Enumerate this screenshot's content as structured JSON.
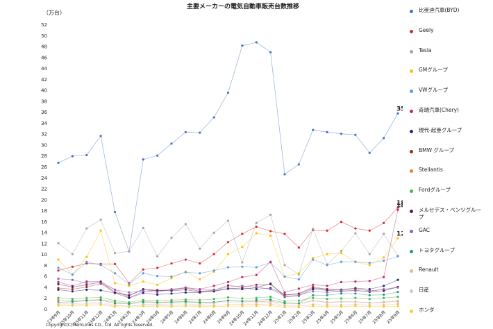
{
  "chart_data": {
    "type": "line",
    "title": "主要メーカーの電気自動車販売台数推移",
    "y_label": "（万台）",
    "note": "Copyright(C)MarkLines CO., Ltd. All rights reserved.",
    "categories": [
      "23年9月",
      "23年10月",
      "23年11月",
      "23年12月",
      "24年1月",
      "24年2月",
      "24年3月",
      "24年4月",
      "24年5月",
      "24年6月",
      "24年7月",
      "24年8月",
      "24年9月",
      "24年10月",
      "24年11月",
      "24年12月",
      "25年1月",
      "25年2月",
      "25年3月",
      "25年4月",
      "25年5月",
      "25年6月",
      "25年7月",
      "25年8月",
      "25年9月"
    ],
    "ylim": [
      0,
      52
    ],
    "yticks": [
      0,
      2,
      4,
      6,
      8,
      10,
      12,
      14,
      16,
      18,
      20,
      22,
      24,
      26,
      28,
      30,
      32,
      34,
      36,
      38,
      40,
      42,
      44,
      46,
      48,
      50,
      52
    ],
    "grid": false,
    "legend": "right",
    "series": [
      {
        "name": "比亜迪汽車(BYD)",
        "color": "#4472c4",
        "label_last": true,
        "values": [
          26.7,
          27.9,
          28.1,
          31.6,
          17.7,
          10.5,
          27.3,
          28.0,
          30.2,
          32.3,
          32.2,
          35.0,
          39.5,
          48.1,
          48.7,
          46.9,
          24.6,
          26.4,
          32.7,
          32.3,
          32.0,
          31.8,
          28.5,
          31.2,
          35.7
        ]
      },
      {
        "name": "Geely",
        "color": "#d9262b",
        "label_last": true,
        "values": [
          7.0,
          7.7,
          8.3,
          8.2,
          8.2,
          4.7,
          7.2,
          7.5,
          8.3,
          9.0,
          8.3,
          10.0,
          12.2,
          13.7,
          15.0,
          14.2,
          13.7,
          11.2,
          14.4,
          14.3,
          15.9,
          14.7,
          14.3,
          15.7,
          18.5
        ]
      },
      {
        "name": "Tesla",
        "color": "#a5a5a5",
        "values": [
          12.0,
          10.0,
          14.7,
          16.3,
          10.2,
          10.5,
          14.8,
          9.6,
          13.0,
          15.5,
          11.0,
          13.9,
          16.1,
          8.5,
          15.7,
          17.2,
          8.0,
          6.3,
          14.6,
          8.1,
          10.6,
          13.8,
          10.0,
          13.7,
          9.7
        ]
      },
      {
        "name": "GMグループ",
        "color": "#ffc000",
        "label_last": true,
        "values": [
          9.0,
          6.2,
          9.5,
          14.3,
          4.7,
          4.2,
          5.0,
          4.4,
          5.6,
          6.8,
          5.4,
          6.8,
          10.0,
          11.3,
          13.8,
          13.4,
          5.9,
          6.5,
          9.3,
          10.0,
          10.2,
          8.6,
          8.0,
          9.4,
          12.9
        ]
      },
      {
        "name": "VWグループ",
        "color": "#5b9bd5",
        "values": [
          7.5,
          6.3,
          8.6,
          8.0,
          6.5,
          4.5,
          6.5,
          6.0,
          5.9,
          6.7,
          6.5,
          7.0,
          7.6,
          7.7,
          7.6,
          8.5,
          5.9,
          5.4,
          9.0,
          8.0,
          8.6,
          8.6,
          8.4,
          8.8,
          9.6
        ]
      },
      {
        "name": "奇瑞汽車(Chery)",
        "color": "#c0266e",
        "label_last": true,
        "values": [
          4.9,
          4.2,
          5.0,
          5.0,
          3.5,
          2.0,
          3.2,
          3.4,
          3.4,
          3.9,
          3.6,
          4.2,
          4.9,
          5.8,
          6.2,
          8.6,
          3.0,
          3.7,
          4.4,
          4.2,
          4.9,
          5.0,
          5.1,
          5.8,
          18.1
        ]
      },
      {
        "name": "現代-起亜グループ",
        "color": "#1f2a7a",
        "values": [
          3.5,
          3.2,
          3.5,
          3.4,
          2.9,
          2.0,
          2.9,
          2.6,
          2.8,
          3.0,
          3.0,
          3.3,
          3.7,
          3.8,
          3.6,
          3.8,
          2.6,
          2.7,
          3.8,
          3.6,
          3.5,
          3.8,
          3.6,
          4.2,
          5.3
        ]
      },
      {
        "name": "BMW グループ",
        "color": "#9e2a1c",
        "values": [
          3.8,
          3.6,
          4.0,
          4.6,
          3.0,
          2.5,
          3.5,
          3.3,
          3.5,
          3.8,
          3.2,
          3.4,
          4.3,
          4.0,
          4.4,
          4.5,
          2.5,
          2.8,
          4.0,
          3.6,
          3.4,
          3.7,
          3.3,
          3.5,
          4.0
        ]
      },
      {
        "name": "Stellantis",
        "color": "#ed7d31",
        "values": [
          1.6,
          1.5,
          1.6,
          1.7,
          1.3,
          1.0,
          1.4,
          1.2,
          1.3,
          1.4,
          1.2,
          1.2,
          1.5,
          1.4,
          1.3,
          1.4,
          1.0,
          1.0,
          1.5,
          1.2,
          1.3,
          1.3,
          1.1,
          1.2,
          1.4
        ]
      },
      {
        "name": "Fordグループ",
        "color": "#3fbf3f",
        "values": [
          2.0,
          1.8,
          2.0,
          2.1,
          1.5,
          1.2,
          1.6,
          1.5,
          1.6,
          1.7,
          1.6,
          1.8,
          2.1,
          1.9,
          2.0,
          2.2,
          1.4,
          1.5,
          2.0,
          1.8,
          1.9,
          2.0,
          1.8,
          2.0,
          2.2
        ]
      },
      {
        "name": "メルセデス・ベンツグループ",
        "color": "#4b1f5c",
        "values": [
          4.5,
          4.0,
          4.4,
          4.9,
          3.0,
          2.4,
          3.6,
          3.4,
          3.3,
          3.5,
          3.1,
          3.2,
          3.7,
          3.6,
          3.9,
          4.6,
          2.2,
          2.4,
          3.6,
          3.4,
          3.2,
          3.4,
          3.1,
          3.3,
          4.0
        ]
      },
      {
        "name": "GAC",
        "color": "#8e5fc1",
        "values": [
          5.5,
          5.3,
          4.7,
          4.7,
          3.5,
          3.0,
          3.3,
          3.0,
          3.6,
          3.9,
          3.5,
          3.5,
          4.0,
          4.2,
          4.0,
          3.6,
          2.3,
          2.5,
          3.2,
          3.0,
          3.3,
          3.3,
          3.2,
          3.6,
          3.9
        ]
      },
      {
        "name": "トヨタグループ",
        "color": "#1a9c8c",
        "values": [
          1.2,
          1.3,
          1.5,
          1.6,
          1.0,
          0.9,
          1.2,
          1.1,
          1.2,
          1.3,
          1.1,
          1.2,
          1.5,
          1.4,
          1.6,
          1.7,
          1.1,
          1.0,
          2.5,
          2.5,
          2.8,
          2.8,
          2.5,
          2.6,
          3.1
        ]
      },
      {
        "name": "Renault",
        "color": "#f4b183",
        "values": [
          0.8,
          0.7,
          0.9,
          0.9,
          0.6,
          0.5,
          0.7,
          0.6,
          0.6,
          0.7,
          0.5,
          0.6,
          0.8,
          0.8,
          0.8,
          0.9,
          0.5,
          0.5,
          0.8,
          0.7,
          0.7,
          0.8,
          0.7,
          0.7,
          0.9
        ]
      },
      {
        "name": "日産",
        "color": "#c9c9c9",
        "values": [
          1.0,
          0.9,
          1.1,
          1.2,
          0.7,
          0.5,
          0.8,
          0.8,
          0.9,
          0.9,
          0.8,
          1.0,
          1.2,
          1.1,
          1.1,
          1.2,
          0.6,
          0.7,
          1.5,
          1.1,
          1.3,
          1.3,
          1.1,
          1.3,
          1.5
        ]
      },
      {
        "name": "ホンダ",
        "color": "#f2d024",
        "values": [
          0.6,
          0.6,
          0.6,
          0.7,
          0.4,
          0.3,
          0.5,
          0.4,
          0.4,
          0.5,
          0.4,
          0.4,
          0.5,
          0.5,
          0.5,
          0.6,
          0.3,
          0.3,
          0.5,
          0.4,
          0.4,
          0.5,
          0.4,
          0.4,
          0.5
        ]
      }
    ]
  }
}
